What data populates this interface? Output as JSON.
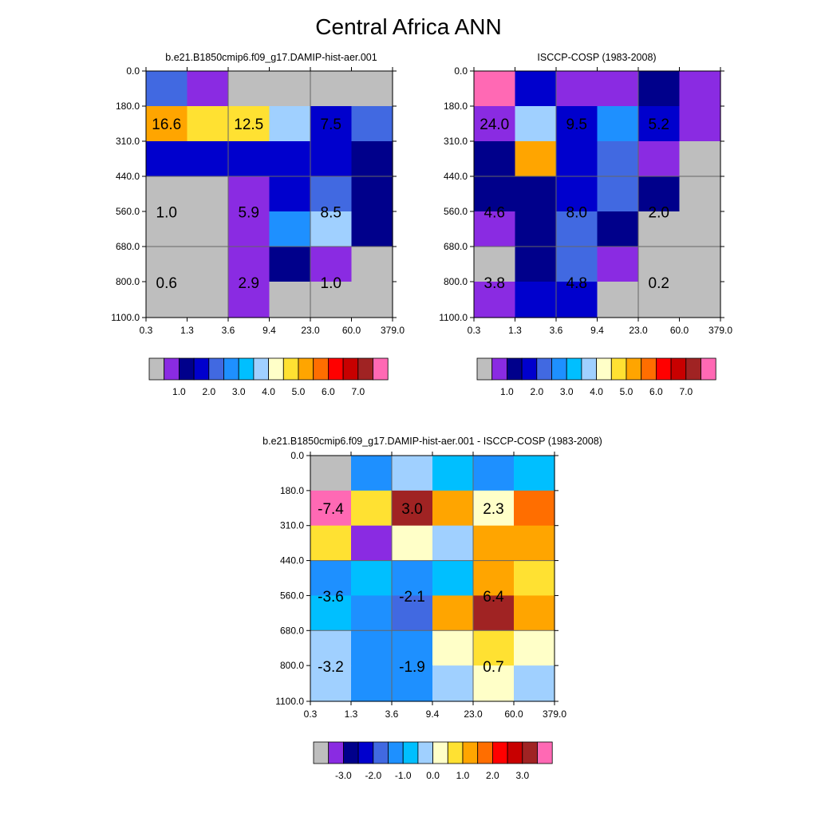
{
  "figure_title": "Central Africa ANN",
  "colors": {
    "model_obs_palette": [
      "#bebebe",
      "#8a2be2",
      "#00008b",
      "#0000cd",
      "#4169e1",
      "#1e90ff",
      "#00bfff",
      "#a0d0ff",
      "#ffffc8",
      "#ffe132",
      "#ffa500",
      "#ff6e00",
      "#ff0000",
      "#c80000",
      "#a02323",
      "#ff69b4"
    ],
    "diff_palette": [
      "#bebebe",
      "#8a2be2",
      "#00008b",
      "#0000cd",
      "#4169e1",
      "#1e90ff",
      "#00bfff",
      "#a0d0ff",
      "#ffffc8",
      "#ffe132",
      "#ffa500",
      "#ff6e00",
      "#ff0000",
      "#c80000",
      "#a02323",
      "#ff69b4"
    ],
    "grid_line": "#666666",
    "text": "#000000"
  },
  "chart_data": [
    {
      "type": "heatmap",
      "title": "b.e21.B1850cmip6.f09_g17.DAMIP-hist-aer.001",
      "x_tick_labels": [
        "0.3",
        "1.3",
        "3.6",
        "9.4",
        "23.0",
        "60.0",
        "379.0"
      ],
      "y_tick_labels": [
        "0.0",
        "180.0",
        "310.0",
        "440.0",
        "560.0",
        "680.0",
        "800.0",
        "1100.0"
      ],
      "cells": [
        [
          4,
          1,
          0,
          0,
          0,
          0
        ],
        [
          10,
          9,
          9,
          7,
          3,
          4
        ],
        [
          3,
          3,
          3,
          3,
          3,
          2
        ],
        [
          0,
          0,
          1,
          3,
          4,
          2
        ],
        [
          0,
          0,
          1,
          5,
          7,
          2
        ],
        [
          0,
          0,
          1,
          2,
          1,
          0
        ],
        [
          0,
          0,
          1,
          0,
          0,
          0
        ]
      ],
      "annotations": [
        {
          "col": 0.5,
          "row": 1.5,
          "text": "16.6"
        },
        {
          "col": 2.5,
          "row": 1.5,
          "text": "12.5"
        },
        {
          "col": 4.5,
          "row": 1.5,
          "text": "7.5"
        },
        {
          "col": 0.5,
          "row": 4.0,
          "text": "1.0"
        },
        {
          "col": 2.5,
          "row": 4.0,
          "text": "5.9"
        },
        {
          "col": 4.5,
          "row": 4.0,
          "text": "8.5"
        },
        {
          "col": 0.5,
          "row": 6.0,
          "text": "0.6"
        },
        {
          "col": 2.5,
          "row": 6.0,
          "text": "2.9"
        },
        {
          "col": 4.5,
          "row": 6.0,
          "text": "1.0"
        }
      ],
      "colorbar_labels": [
        "1.0",
        "2.0",
        "3.0",
        "4.0",
        "5.0",
        "6.0",
        "7.0"
      ]
    },
    {
      "type": "heatmap",
      "title": "ISCCP-COSP (1983-2008)",
      "x_tick_labels": [
        "0.3",
        "1.3",
        "3.6",
        "9.4",
        "23.0",
        "60.0",
        "379.0"
      ],
      "y_tick_labels": [
        "0.0",
        "180.0",
        "310.0",
        "440.0",
        "560.0",
        "680.0",
        "800.0",
        "1100.0"
      ],
      "cells": [
        [
          15,
          3,
          1,
          1,
          2,
          1
        ],
        [
          1,
          7,
          3,
          5,
          3,
          1
        ],
        [
          2,
          10,
          3,
          4,
          1,
          0
        ],
        [
          2,
          2,
          3,
          4,
          2,
          0
        ],
        [
          1,
          2,
          4,
          2,
          0,
          0
        ],
        [
          0,
          2,
          4,
          1,
          0,
          0
        ],
        [
          1,
          3,
          3,
          0,
          0,
          0
        ]
      ],
      "annotations": [
        {
          "col": 0.5,
          "row": 1.5,
          "text": "24.0"
        },
        {
          "col": 2.5,
          "row": 1.5,
          "text": "9.5"
        },
        {
          "col": 4.5,
          "row": 1.5,
          "text": "5.2"
        },
        {
          "col": 0.5,
          "row": 4.0,
          "text": "4.6"
        },
        {
          "col": 2.5,
          "row": 4.0,
          "text": "8.0"
        },
        {
          "col": 4.5,
          "row": 4.0,
          "text": "2.0"
        },
        {
          "col": 0.5,
          "row": 6.0,
          "text": "3.8"
        },
        {
          "col": 2.5,
          "row": 6.0,
          "text": "4.8"
        },
        {
          "col": 4.5,
          "row": 6.0,
          "text": "0.2"
        }
      ],
      "colorbar_labels": [
        "1.0",
        "2.0",
        "3.0",
        "4.0",
        "5.0",
        "6.0",
        "7.0"
      ]
    },
    {
      "type": "heatmap",
      "title": "b.e21.B1850cmip6.f09_g17.DAMIP-hist-aer.001 - ISCCP-COSP (1983-2008)",
      "x_tick_labels": [
        "0.3",
        "1.3",
        "3.6",
        "9.4",
        "23.0",
        "60.0",
        "379.0"
      ],
      "y_tick_labels": [
        "0.0",
        "180.0",
        "310.0",
        "440.0",
        "560.0",
        "680.0",
        "800.0",
        "1100.0"
      ],
      "cells": [
        [
          0,
          5,
          7,
          6,
          5,
          6
        ],
        [
          15,
          9,
          14,
          10,
          8,
          11
        ],
        [
          9,
          1,
          8,
          7,
          10,
          10
        ],
        [
          5,
          6,
          5,
          6,
          10,
          9
        ],
        [
          6,
          5,
          4,
          10,
          14,
          10
        ],
        [
          7,
          5,
          5,
          8,
          9,
          8
        ],
        [
          7,
          5,
          5,
          7,
          8,
          7
        ]
      ],
      "annotations": [
        {
          "col": 0.5,
          "row": 1.5,
          "text": "-7.4"
        },
        {
          "col": 2.5,
          "row": 1.5,
          "text": "3.0"
        },
        {
          "col": 4.5,
          "row": 1.5,
          "text": "2.3"
        },
        {
          "col": 0.5,
          "row": 4.0,
          "text": "-3.6"
        },
        {
          "col": 2.5,
          "row": 4.0,
          "text": "-2.1"
        },
        {
          "col": 4.5,
          "row": 4.0,
          "text": "6.4"
        },
        {
          "col": 0.5,
          "row": 6.0,
          "text": "-3.2"
        },
        {
          "col": 2.5,
          "row": 6.0,
          "text": "-1.9"
        },
        {
          "col": 4.5,
          "row": 6.0,
          "text": "0.7"
        }
      ],
      "colorbar_labels": [
        "-3.0",
        "-2.0",
        "-1.0",
        "0.0",
        "1.0",
        "2.0",
        "3.0"
      ]
    }
  ]
}
